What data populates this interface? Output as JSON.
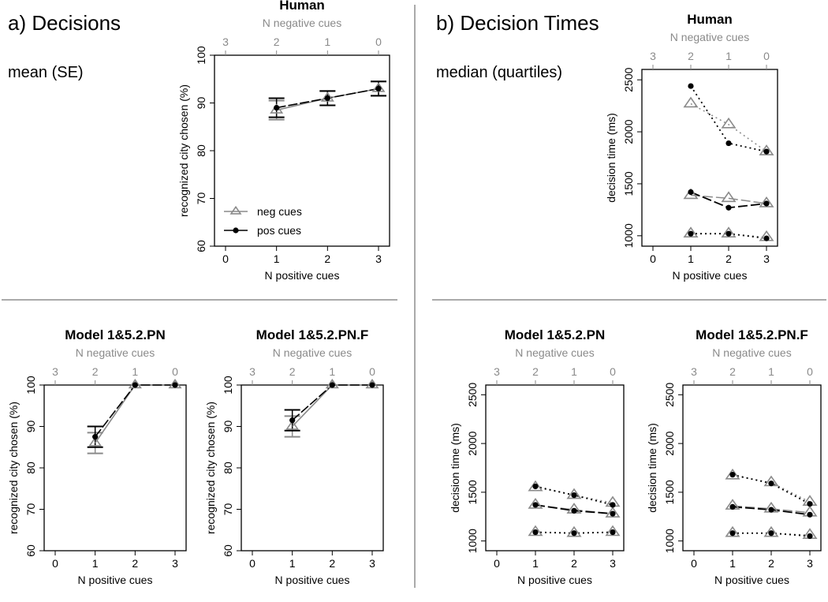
{
  "figure": {
    "panel_a_title": "a) Decisions",
    "panel_a_stat": "mean (SE)",
    "panel_b_title": "b) Decision Times",
    "panel_b_stat": "median (quartiles)"
  },
  "colors": {
    "pos": "#000000",
    "neg": "#8a8a8a",
    "divider": "#555555"
  },
  "chart_data": [
    {
      "id": "a_human",
      "type": "line",
      "title": "Human",
      "xlabel": "N positive cues",
      "ylabel": "recognized city chosen (%)",
      "x2label": "N negative cues",
      "xlim": [
        0,
        3
      ],
      "xticks": [
        0,
        1,
        2,
        3
      ],
      "x2ticks": [
        "3",
        "2",
        "1",
        "0"
      ],
      "ylim": [
        60,
        100
      ],
      "yticks": [
        60,
        70,
        80,
        90,
        100
      ],
      "legend": {
        "position": "bottom-left",
        "entries": [
          "neg cues",
          "pos cues"
        ]
      },
      "series": [
        {
          "name": "neg cues",
          "x": [
            1,
            2,
            3
          ],
          "y": [
            88.5,
            91,
            93
          ],
          "se": [
            2,
            1.5,
            1.5
          ]
        },
        {
          "name": "pos cues",
          "x": [
            1,
            2,
            3
          ],
          "y": [
            89,
            91,
            93
          ],
          "se": [
            2,
            1.5,
            1.5
          ]
        }
      ]
    },
    {
      "id": "a_pn",
      "type": "line",
      "title": "Model 1&5.2.PN",
      "xlabel": "N positive cues",
      "ylabel": "recognized city chosen (%)",
      "x2label": "N negative cues",
      "xlim": [
        0,
        3
      ],
      "xticks": [
        0,
        1,
        2,
        3
      ],
      "x2ticks": [
        "3",
        "2",
        "1",
        "0"
      ],
      "ylim": [
        60,
        100
      ],
      "yticks": [
        60,
        70,
        80,
        90,
        100
      ],
      "series": [
        {
          "name": "neg cues",
          "x": [
            1,
            2,
            3
          ],
          "y": [
            86,
            100,
            100
          ],
          "se": [
            2.5,
            0,
            0
          ]
        },
        {
          "name": "pos cues",
          "x": [
            1,
            2,
            3
          ],
          "y": [
            87.5,
            100,
            100
          ],
          "se": [
            2.5,
            0,
            0
          ]
        }
      ]
    },
    {
      "id": "a_pnf",
      "type": "line",
      "title": "Model 1&5.2.PN.F",
      "xlabel": "N positive cues",
      "ylabel": "recognized city chosen (%)",
      "x2label": "N negative cues",
      "xlim": [
        0,
        3
      ],
      "xticks": [
        0,
        1,
        2,
        3
      ],
      "x2ticks": [
        "3",
        "2",
        "1",
        "0"
      ],
      "ylim": [
        60,
        100
      ],
      "yticks": [
        60,
        70,
        80,
        90,
        100
      ],
      "series": [
        {
          "name": "neg cues",
          "x": [
            1,
            2,
            3
          ],
          "y": [
            90,
            100,
            100
          ],
          "se": [
            2.5,
            0,
            0
          ]
        },
        {
          "name": "pos cues",
          "x": [
            1,
            2,
            3
          ],
          "y": [
            91.5,
            100,
            100
          ],
          "se": [
            2.5,
            0,
            0
          ]
        }
      ]
    },
    {
      "id": "b_human",
      "type": "line",
      "title": "Human",
      "xlabel": "N positive cues",
      "ylabel": "decision time (ms)",
      "x2label": "N negative cues",
      "xlim": [
        0,
        3
      ],
      "xticks": [
        0,
        1,
        2,
        3
      ],
      "x2ticks": [
        "3",
        "2",
        "1",
        "0"
      ],
      "ylim": [
        900,
        2600
      ],
      "yticks": [
        1000,
        1500,
        2000,
        2500
      ],
      "series": [
        {
          "name": "neg cues",
          "x": [
            1,
            2,
            3
          ],
          "q1": [
            1020,
            1020,
            985
          ],
          "median": [
            1390,
            1360,
            1310
          ],
          "q3": [
            2270,
            2070,
            1810
          ]
        },
        {
          "name": "pos cues",
          "x": [
            1,
            2,
            3
          ],
          "q1": [
            1020,
            1020,
            975
          ],
          "median": [
            1420,
            1270,
            1310
          ],
          "q3": [
            2440,
            1890,
            1810
          ]
        }
      ]
    },
    {
      "id": "b_pn",
      "type": "line",
      "title": "Model 1&5.2.PN",
      "xlabel": "N positive cues",
      "ylabel": "decision time (ms)",
      "x2label": "N negative cues",
      "xlim": [
        0,
        3
      ],
      "xticks": [
        0,
        1,
        2,
        3
      ],
      "x2ticks": [
        "3",
        "2",
        "1",
        "0"
      ],
      "ylim": [
        900,
        2600
      ],
      "yticks": [
        1000,
        1500,
        2000,
        2500
      ],
      "series": [
        {
          "name": "neg cues",
          "x": [
            1,
            2,
            3
          ],
          "q1": [
            1090,
            1080,
            1090
          ],
          "median": [
            1370,
            1320,
            1280
          ],
          "q3": [
            1550,
            1470,
            1390
          ]
        },
        {
          "name": "pos cues",
          "x": [
            1,
            2,
            3
          ],
          "q1": [
            1090,
            1080,
            1090
          ],
          "median": [
            1370,
            1310,
            1280
          ],
          "q3": [
            1560,
            1470,
            1370
          ]
        }
      ]
    },
    {
      "id": "b_pnf",
      "type": "line",
      "title": "Model 1&5.2.PN.F",
      "xlabel": "N positive cues",
      "ylabel": "decision time (ms)",
      "x2label": "N negative cues",
      "xlim": [
        0,
        3
      ],
      "xticks": [
        0,
        1,
        2,
        3
      ],
      "x2ticks": [
        "3",
        "2",
        "1",
        "0"
      ],
      "ylim": [
        900,
        2600
      ],
      "yticks": [
        1000,
        1500,
        2000,
        2500
      ],
      "series": [
        {
          "name": "neg cues",
          "x": [
            1,
            2,
            3
          ],
          "q1": [
            1080,
            1080,
            1060
          ],
          "median": [
            1360,
            1330,
            1290
          ],
          "q3": [
            1670,
            1600,
            1400
          ]
        },
        {
          "name": "pos cues",
          "x": [
            1,
            2,
            3
          ],
          "q1": [
            1080,
            1080,
            1050
          ],
          "median": [
            1350,
            1320,
            1270
          ],
          "q3": [
            1680,
            1590,
            1380
          ]
        }
      ]
    }
  ]
}
